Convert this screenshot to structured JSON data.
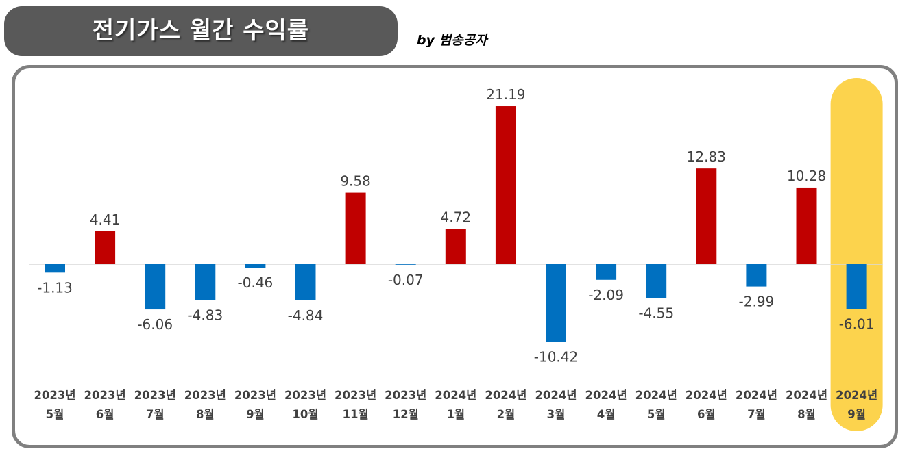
{
  "header": {
    "title": "전기가스 월간 수익률",
    "byline": "by 범송공자"
  },
  "colors": {
    "positive": "#c00000",
    "negative": "#0070c0",
    "highlight": "#fcd34d",
    "title_bg": "#595959",
    "frame": "#808080",
    "label": "#404040"
  },
  "chart_data": {
    "type": "bar",
    "title": "전기가스 월간 수익률",
    "categories": [
      [
        "2023년",
        "5월"
      ],
      [
        "2023년",
        "6월"
      ],
      [
        "2023년",
        "7월"
      ],
      [
        "2023년",
        "8월"
      ],
      [
        "2023년",
        "9월"
      ],
      [
        "2023년",
        "10월"
      ],
      [
        "2023년",
        "11월"
      ],
      [
        "2023년",
        "12월"
      ],
      [
        "2024년",
        "1월"
      ],
      [
        "2024년",
        "2월"
      ],
      [
        "2024년",
        "3월"
      ],
      [
        "2024년",
        "4월"
      ],
      [
        "2024년",
        "5월"
      ],
      [
        "2024년",
        "6월"
      ],
      [
        "2024년",
        "7월"
      ],
      [
        "2024년",
        "8월"
      ],
      [
        "2024년",
        "9월"
      ]
    ],
    "values": [
      -1.13,
      4.41,
      -6.06,
      -4.83,
      -0.46,
      -4.84,
      9.58,
      -0.07,
      4.72,
      21.19,
      -10.42,
      -2.09,
      -4.55,
      12.83,
      -2.99,
      10.28,
      -6.01
    ],
    "value_labels": [
      "-1.13",
      "4.41",
      "-6.06",
      "-4.83",
      "-0.46",
      "-4.84",
      "9.58",
      "-0.07",
      "4.72",
      "21.19",
      "-10.42",
      "-2.09",
      "-4.55",
      "12.83",
      "-2.99",
      "10.28",
      "-6.01"
    ],
    "highlighted_index": 16,
    "ylim": [
      -10.42,
      21.19
    ],
    "grid": false,
    "legend": "none",
    "xlabel": "",
    "ylabel": ""
  }
}
